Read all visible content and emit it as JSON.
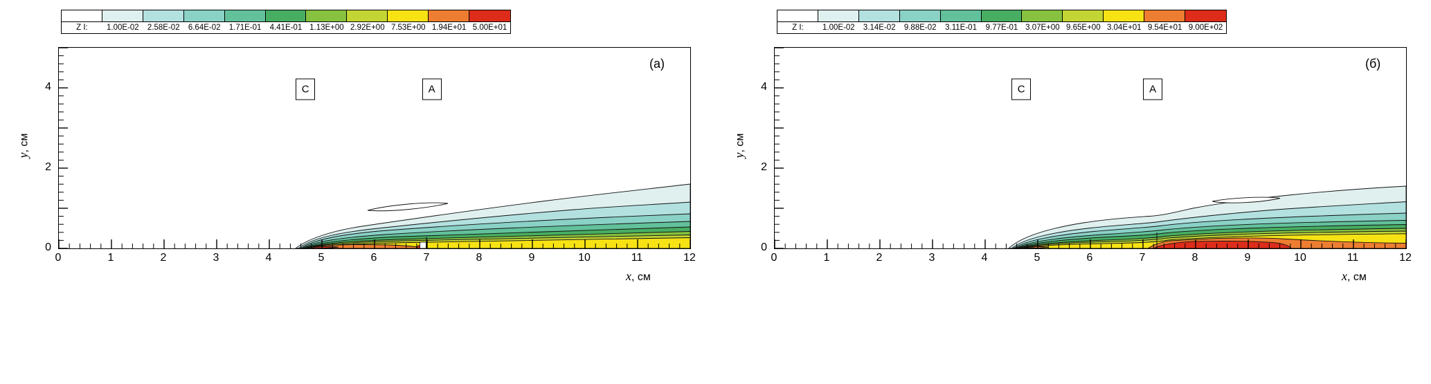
{
  "legend_title": "Z I:",
  "palette": [
    "#ffffff",
    "#dff0ef",
    "#b2e1e0",
    "#8ad1c6",
    "#62c19b",
    "#47ad62",
    "#86c140",
    "#c2d534",
    "#f7e214",
    "#ed7d31",
    "#dd2c1a"
  ],
  "axes": {
    "x_letter": "x",
    "x_unit": ", см",
    "y_letter": "y",
    "y_unit": ", см",
    "x_ticks": [
      0,
      1,
      2,
      3,
      4,
      5,
      6,
      7,
      8,
      9,
      10,
      11,
      12
    ],
    "y_tick_labels": [
      0,
      2,
      4
    ],
    "x_range": [
      0,
      12
    ],
    "y_range": [
      0,
      5
    ],
    "x_minor_step": 0.2,
    "y_minor_step": 0.2
  },
  "chart_data": [
    {
      "type": "contour",
      "panel_label": "(а)",
      "variable": "Z I",
      "xlabel": "x, см",
      "ylabel": "y, см",
      "xlim": [
        0,
        12
      ],
      "ylim": [
        0,
        5
      ],
      "grid": false,
      "legend_position": "top",
      "level_labels": [
        "1.00E-02",
        "2.58E-02",
        "6.64E-02",
        "1.71E-01",
        "4.41E-01",
        "1.13E+00",
        "2.92E+00",
        "7.53E+00",
        "1.94E+01",
        "5.00E+01"
      ],
      "levels": [
        0.01,
        0.0258,
        0.0664,
        0.171,
        0.441,
        1.13,
        2.92,
        7.53,
        19.4,
        50.0
      ],
      "annotations": [
        {
          "label": "C",
          "x": 4.7,
          "y": 3.95
        },
        {
          "label": "A",
          "x": 7.1,
          "y": 3.95
        }
      ],
      "outer_contour_approx": [
        [
          4.5,
          0
        ],
        [
          5,
          0.3
        ],
        [
          6,
          0.52
        ],
        [
          7,
          0.78
        ],
        [
          8,
          1.0
        ],
        [
          9,
          1.18
        ],
        [
          10,
          1.33
        ],
        [
          11,
          1.47
        ],
        [
          12,
          1.6
        ]
      ],
      "hot_region_approx": [
        [
          4.75,
          0
        ],
        [
          5.5,
          0.1
        ],
        [
          6.3,
          0.1
        ],
        [
          7,
          0
        ]
      ]
    },
    {
      "type": "contour",
      "panel_label": "(б)",
      "variable": "Z I",
      "xlabel": "x, см",
      "ylabel": "y, см",
      "xlim": [
        0,
        12
      ],
      "ylim": [
        0,
        5
      ],
      "grid": false,
      "legend_position": "top",
      "level_labels": [
        "1.00E-02",
        "3.14E-02",
        "9.88E-02",
        "3.11E-01",
        "9.77E-01",
        "3.07E+00",
        "9.65E+00",
        "3.04E+01",
        "9.54E+01",
        "9.00E+02"
      ],
      "levels": [
        0.01,
        0.0314,
        0.0988,
        0.311,
        0.977,
        3.07,
        9.65,
        30.4,
        95.4,
        900.0
      ],
      "annotations": [
        {
          "label": "C",
          "x": 4.7,
          "y": 3.95
        },
        {
          "label": "A",
          "x": 7.2,
          "y": 3.95
        }
      ],
      "outer_contour_approx": [
        [
          4.4,
          0
        ],
        [
          5,
          0.33
        ],
        [
          6,
          0.62
        ],
        [
          7,
          0.78
        ],
        [
          7.4,
          0.8
        ],
        [
          8,
          1.05
        ],
        [
          9,
          1.25
        ],
        [
          10,
          1.38
        ],
        [
          11,
          1.48
        ],
        [
          12,
          1.55
        ]
      ],
      "hot_region_approx": [
        [
          7.2,
          0
        ],
        [
          7.8,
          0.22
        ],
        [
          8.6,
          0.2
        ],
        [
          9.8,
          0
        ]
      ]
    }
  ]
}
